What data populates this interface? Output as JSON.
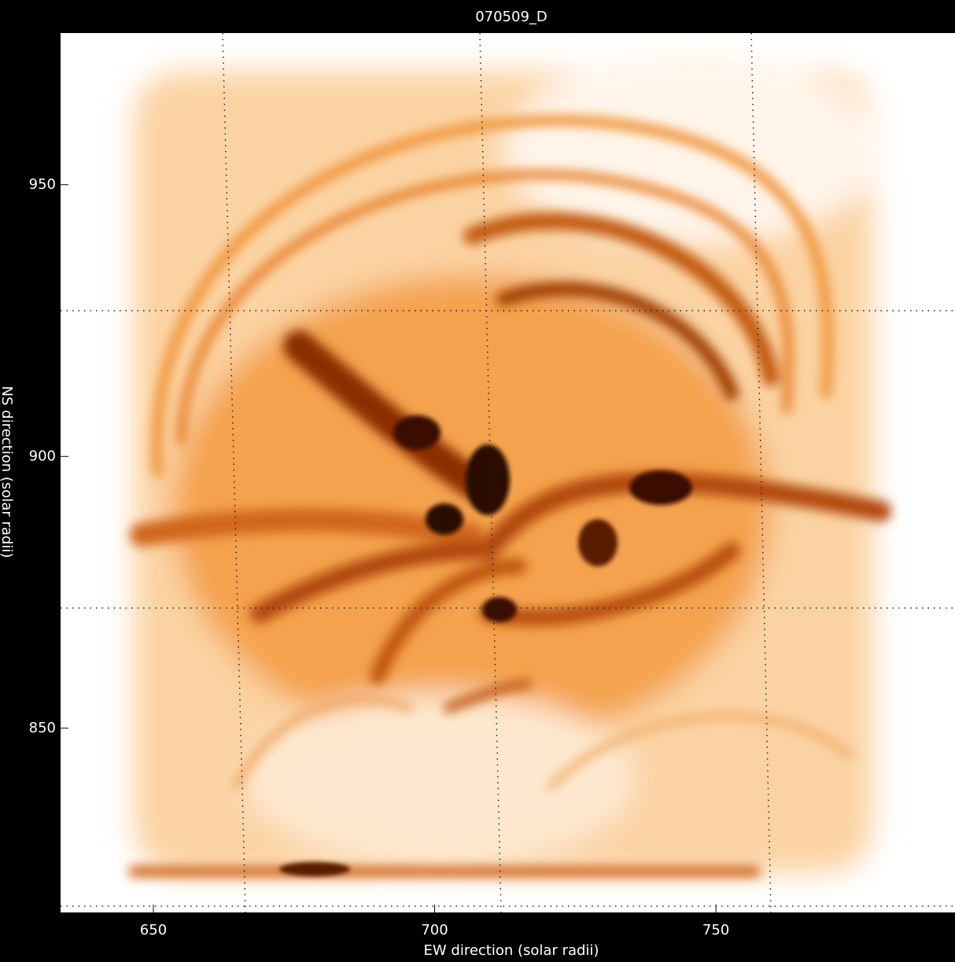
{
  "chart_data": {
    "type": "image",
    "title": "070509_D",
    "x_label": "EW direction (solar radii)",
    "y_label": "NS direction (solar radii)",
    "xlim": [
      633.5,
      792.5
    ],
    "xticks": [
      650,
      700,
      750
    ],
    "ylim": [
      816.1,
      977.9
    ],
    "yticks": [
      850,
      900,
      950
    ]
  }
}
